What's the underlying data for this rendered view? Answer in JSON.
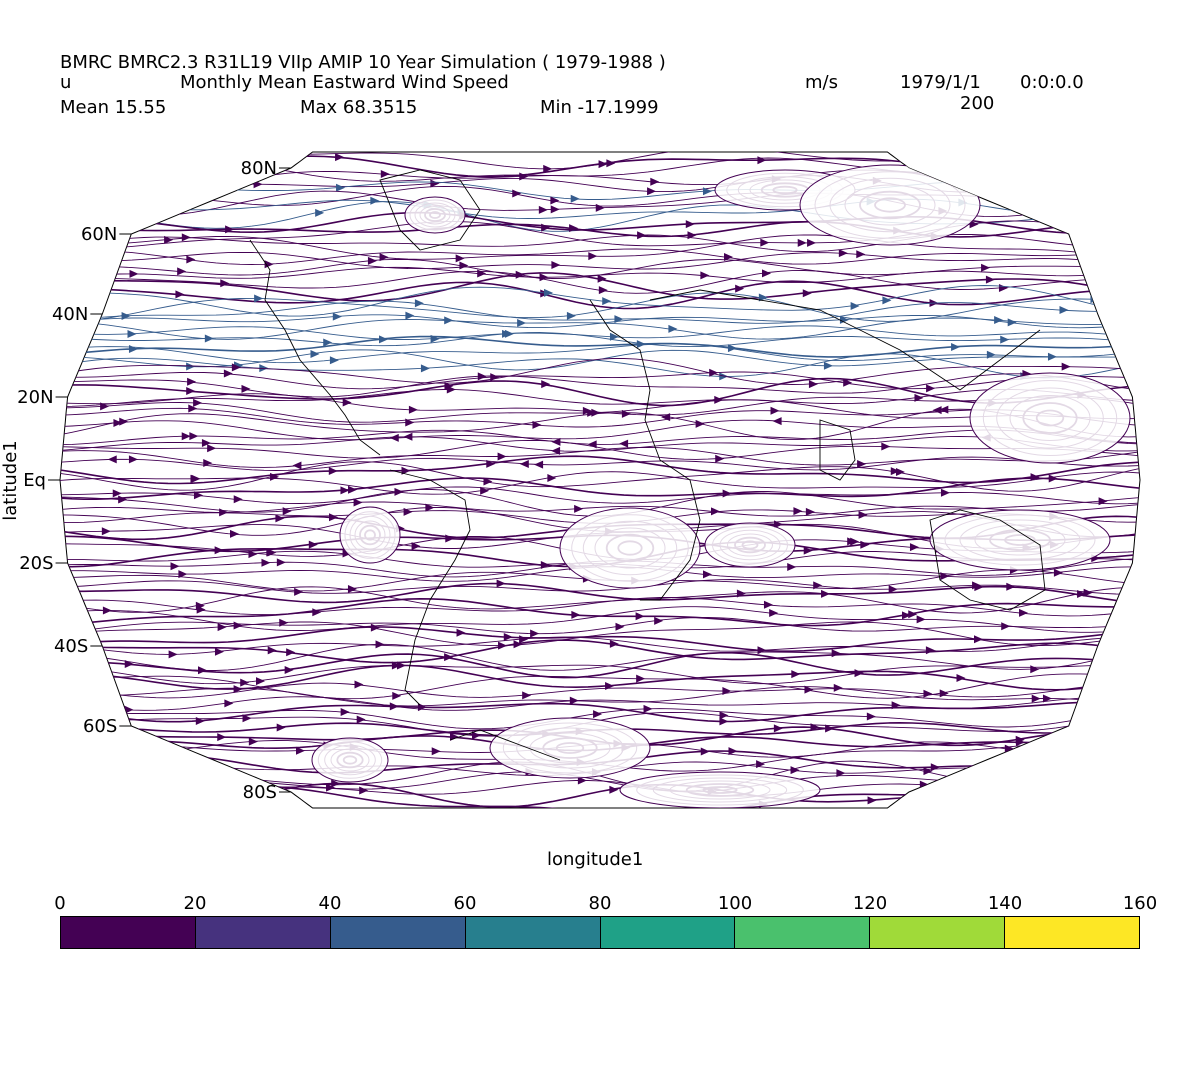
{
  "header": {
    "line1": "BMRC BMRC2.3 R31L19 VIIp AMIP 10 Year Simulation ( 1979-1988 )",
    "var_name": "u",
    "long_name": "Monthly Mean Eastward Wind Speed",
    "units": "m/s",
    "date": "1979/1/1",
    "time": "0:0:0.0",
    "level": "200",
    "mean": "Mean 15.55",
    "max": "Max 68.3515",
    "min": "Min -17.1999"
  },
  "axes": {
    "xlabel": "longitude1",
    "ylabel": "latitude1",
    "lat_ticks": [
      "80N",
      "60N",
      "40N",
      "20N",
      "Eq",
      "20S",
      "40S",
      "60S",
      "80S"
    ]
  },
  "colorbar": {
    "ticks": [
      "0",
      "20",
      "40",
      "60",
      "80",
      "100",
      "120",
      "140",
      "160"
    ],
    "colors": [
      "#440154",
      "#46327e",
      "#365c8d",
      "#277f8e",
      "#1fa187",
      "#4ac16d",
      "#a0da39",
      "#fde725"
    ]
  },
  "map": {
    "projection": "Robinson",
    "plot_type": "streamlines",
    "stream_color": "#440154",
    "jet_color": "#365c8d",
    "coastline_color": "#000000"
  }
}
